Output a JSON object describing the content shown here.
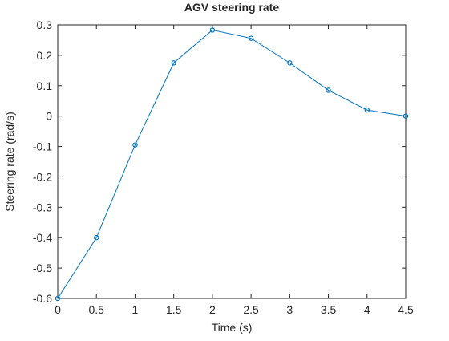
{
  "chart_data": {
    "type": "line",
    "title": "AGV steering rate",
    "xlabel": "Time (s)",
    "ylabel": "Steering rate (rad/s)",
    "xlim": [
      0,
      4.5
    ],
    "ylim": [
      -0.6,
      0.3
    ],
    "xticks": [
      0,
      0.5,
      1,
      1.5,
      2,
      2.5,
      3,
      3.5,
      4,
      4.5
    ],
    "xtick_labels": [
      "0",
      "0.5",
      "1",
      "1.5",
      "2",
      "2.5",
      "3",
      "3.5",
      "4",
      "4.5"
    ],
    "yticks": [
      -0.6,
      -0.5,
      -0.4,
      -0.3,
      -0.2,
      -0.1,
      0,
      0.1,
      0.2,
      0.3
    ],
    "ytick_labels": [
      "-0.6",
      "-0.5",
      "-0.4",
      "-0.3",
      "-0.2",
      "-0.1",
      "0",
      "0.1",
      "0.2",
      "0.3"
    ],
    "grid": false,
    "series": [
      {
        "x": [
          0,
          0.5,
          1,
          1.5,
          2,
          2.5,
          3,
          3.5,
          4,
          4.5
        ],
        "y": [
          -0.6,
          -0.4,
          -0.095,
          0.175,
          0.283,
          0.256,
          0.175,
          0.085,
          0.02,
          0.0
        ],
        "color": "#0072bd",
        "marker": "circle"
      }
    ]
  }
}
